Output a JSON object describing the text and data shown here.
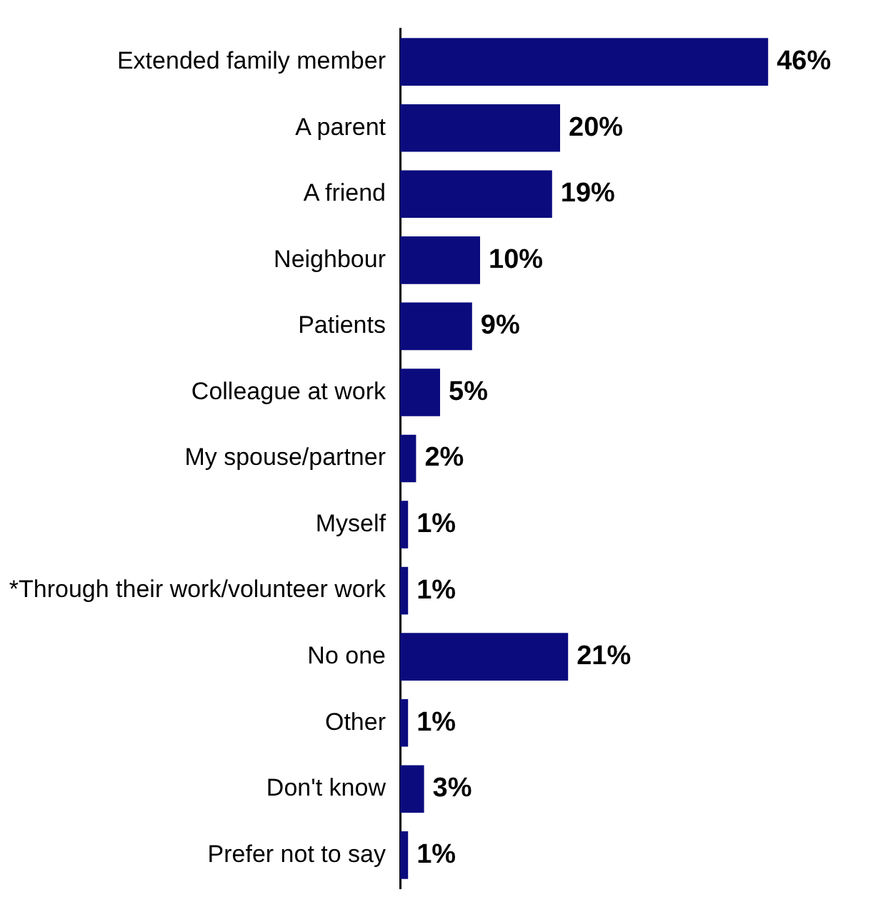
{
  "chart_data": {
    "type": "bar",
    "orientation": "horizontal",
    "categories": [
      "Extended family member",
      "A parent",
      "A friend",
      "Neighbour",
      "Patients",
      "Colleague at work",
      "My spouse/partner",
      "Myself",
      "*Through their work/volunteer work",
      "No one",
      "Other",
      "Don't know",
      "Prefer not to say"
    ],
    "values": [
      46,
      20,
      19,
      10,
      9,
      5,
      2,
      1,
      1,
      21,
      1,
      3,
      1
    ],
    "value_labels": [
      "46%",
      "20%",
      "19%",
      "10%",
      "9%",
      "5%",
      "2%",
      "1%",
      "1%",
      "21%",
      "1%",
      "3%",
      "1%"
    ],
    "color": "#0b0b7e"
  }
}
